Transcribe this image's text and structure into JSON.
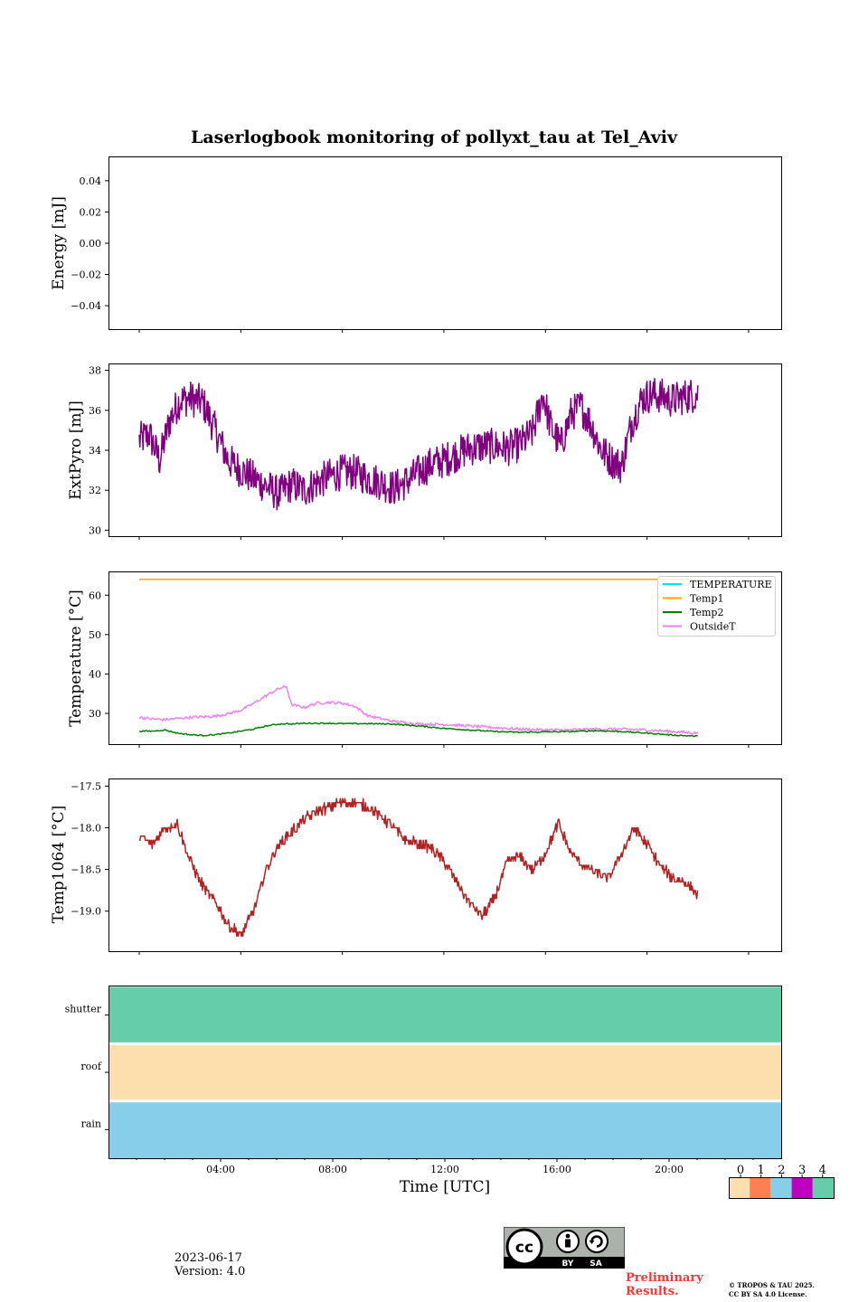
{
  "title": "Laserlogbook monitoring of pollyxt_tau at Tel_Aviv",
  "colors": {
    "extpyro": "#800080",
    "temperature": "#00e5ee",
    "temp1": "#ffa500",
    "temp2": "#008000",
    "outsidet": "#ee82ee",
    "temp1064": "#b22222",
    "status_0": "#fddead",
    "status_1": "#ff7f50",
    "status_2": "#87ceeb",
    "status_3": "#c000c0",
    "status_4": "#66cdaa"
  },
  "chart_data": [
    {
      "type": "line",
      "panel": "energy",
      "ylabel": "Energy [mJ]",
      "ylim": [
        -0.055,
        0.055
      ],
      "yticks": [
        "0.04",
        "0.02",
        "0.00",
        "−0.02",
        "−0.04"
      ],
      "ytick_values": [
        0.04,
        0.02,
        0.0,
        -0.02,
        -0.04
      ],
      "series": []
    },
    {
      "type": "line",
      "panel": "extpyro",
      "ylabel": "ExtPyro [mJ]",
      "ylim": [
        29.7,
        38.3
      ],
      "yticks": [
        "38",
        "36",
        "34",
        "32",
        "30"
      ],
      "ytick_values": [
        38,
        36,
        34,
        32,
        30
      ],
      "x_hours": [
        0.0,
        0.4,
        0.8,
        1.2,
        1.6,
        2.0,
        2.5,
        3.0,
        3.5,
        4.0,
        4.5,
        5.0,
        5.5,
        6.0,
        6.5,
        7.0,
        7.5,
        8.0,
        8.5,
        9.0,
        9.5,
        10.0,
        10.5,
        11.0,
        11.5,
        12.0,
        12.5,
        13.0,
        13.5,
        14.0,
        14.5,
        15.0,
        15.5,
        15.9,
        16.2,
        16.6,
        17.0,
        17.4,
        17.8,
        18.2,
        18.6,
        19.0,
        19.4,
        19.8,
        20.2,
        20.6,
        21.0,
        21.5,
        22.0
      ],
      "series": [
        {
          "values": [
            34.5,
            34.8,
            33.5,
            35.5,
            36.5,
            36.6,
            36.4,
            35.0,
            33.5,
            33.0,
            32.6,
            32.2,
            31.8,
            32.3,
            32.0,
            32.4,
            32.7,
            32.9,
            32.9,
            32.6,
            32.4,
            32.1,
            32.4,
            32.9,
            33.3,
            33.5,
            33.8,
            34.1,
            34.2,
            34.2,
            34.1,
            34.3,
            34.9,
            36.8,
            35.2,
            34.2,
            35.8,
            36.2,
            35.3,
            34.0,
            33.5,
            33.2,
            35.4,
            36.6,
            36.8,
            36.7,
            36.5,
            36.7,
            36.8
          ]
        }
      ]
    },
    {
      "type": "line",
      "panel": "temperature",
      "ylabel": "Temperature [°C]",
      "ylim": [
        22.2,
        65.8
      ],
      "yticks": [
        "60",
        "50",
        "40",
        "30"
      ],
      "ytick_values": [
        60,
        50,
        40,
        30
      ],
      "legend": [
        "TEMPERATURE",
        "Temp1",
        "Temp2",
        "OutsideT"
      ],
      "legend_position": "upper right",
      "x_hours": [
        0.0,
        0.5,
        1.0,
        1.5,
        2.0,
        2.5,
        3.0,
        3.5,
        4.0,
        4.5,
        5.0,
        5.5,
        5.8,
        6.0,
        6.5,
        7.0,
        7.5,
        8.0,
        8.5,
        9.0,
        10.0,
        11.0,
        12.0,
        13.0,
        14.0,
        15.0,
        16.0,
        17.0,
        18.0,
        19.0,
        20.0,
        21.0,
        22.0
      ],
      "series": [
        {
          "name": "Temp1",
          "values": [
            64.0,
            64.0,
            64.0,
            64.0,
            64.0,
            64.0,
            64.0,
            64.0,
            64.0,
            64.0,
            64.0,
            64.0,
            64.0,
            64.0,
            64.0,
            64.0,
            64.0,
            64.0,
            64.0,
            64.0,
            64.0,
            64.0,
            64.0,
            64.0,
            64.0,
            64.0,
            64.0,
            64.0,
            64.0,
            64.0,
            64.0,
            64.0,
            64.0
          ]
        },
        {
          "name": "Temp2",
          "values": [
            25.5,
            25.5,
            25.8,
            25.0,
            24.6,
            24.4,
            24.6,
            25.0,
            25.5,
            26.0,
            26.8,
            27.3,
            27.4,
            27.3,
            27.5,
            27.5,
            27.5,
            27.4,
            27.4,
            27.4,
            27.3,
            26.8,
            26.2,
            25.8,
            25.4,
            25.2,
            25.3,
            25.4,
            25.6,
            25.4,
            25.0,
            24.5,
            24.2
          ]
        },
        {
          "name": "OutsideT",
          "values": [
            29.0,
            28.6,
            28.4,
            28.7,
            29.0,
            29.1,
            29.3,
            29.9,
            30.8,
            32.5,
            34.5,
            36.3,
            36.8,
            32.2,
            31.5,
            32.6,
            32.8,
            32.6,
            31.8,
            29.4,
            28.0,
            27.3,
            27.2,
            26.8,
            26.4,
            26.0,
            25.8,
            25.8,
            26.0,
            26.0,
            25.8,
            25.4,
            25.0
          ]
        }
      ]
    },
    {
      "type": "line",
      "panel": "temp1064",
      "ylabel": "Temp1064 [°C]",
      "ylim": [
        -19.48,
        -17.42
      ],
      "yticks": [
        "−17.5",
        "−18.0",
        "−18.5",
        "−19.0"
      ],
      "ytick_values": [
        -17.5,
        -18.0,
        -18.5,
        -19.0
      ],
      "x_hours": [
        0.0,
        0.5,
        1.0,
        1.5,
        2.0,
        2.5,
        3.0,
        3.5,
        4.0,
        4.5,
        5.0,
        5.5,
        6.0,
        6.5,
        7.0,
        7.5,
        8.0,
        8.5,
        9.0,
        9.5,
        10.0,
        10.5,
        11.0,
        11.5,
        12.0,
        12.5,
        13.0,
        13.5,
        14.0,
        14.5,
        15.0,
        15.5,
        16.0,
        16.5,
        17.0,
        17.5,
        18.0,
        18.5,
        19.0,
        19.5,
        20.0,
        20.5,
        21.0,
        21.5,
        22.0
      ],
      "series": [
        {
          "values": [
            -18.1,
            -18.2,
            -18.0,
            -17.95,
            -18.4,
            -18.7,
            -18.9,
            -19.15,
            -19.3,
            -19.0,
            -18.5,
            -18.2,
            -18.05,
            -17.9,
            -17.8,
            -17.75,
            -17.7,
            -17.7,
            -17.75,
            -17.85,
            -18.0,
            -18.15,
            -18.2,
            -18.25,
            -18.4,
            -18.65,
            -18.9,
            -19.05,
            -18.85,
            -18.4,
            -18.35,
            -18.5,
            -18.3,
            -17.95,
            -18.3,
            -18.45,
            -18.55,
            -18.6,
            -18.3,
            -18.0,
            -18.2,
            -18.45,
            -18.6,
            -18.65,
            -18.8
          ]
        }
      ]
    },
    {
      "type": "heatmap",
      "panel": "status",
      "xlabel": "Time [UTC]",
      "xticks": [
        "04:00",
        "08:00",
        "12:00",
        "16:00",
        "20:00"
      ],
      "xtick_values": [
        4,
        8,
        12,
        16,
        20
      ],
      "xlim_hours": [
        0,
        24
      ],
      "rows": [
        "shutter",
        "roof",
        "rain"
      ],
      "row_status": [
        4,
        0,
        2
      ],
      "colorbar_ticks": [
        "0",
        "1",
        "2",
        "3",
        "4"
      ]
    }
  ],
  "footer": {
    "date": "2023-06-17",
    "version": "Version: 4.0",
    "license_badge": [
      "BY",
      "SA"
    ],
    "preliminary": [
      "Preliminary",
      "Results."
    ],
    "copyright": [
      "© TROPOS & TAU 2025.",
      "CC BY SA 4.0 License."
    ]
  }
}
